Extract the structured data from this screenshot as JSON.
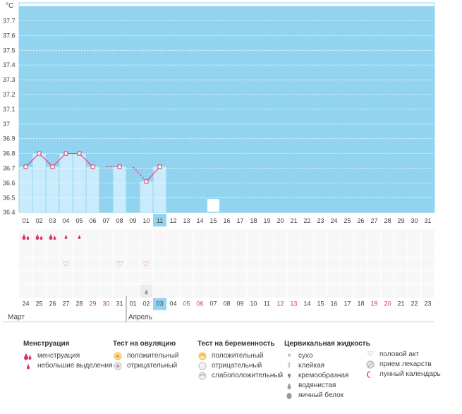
{
  "chart_data": {
    "type": "line",
    "title": "",
    "ylabel": "°C",
    "xlabel": "",
    "ylim": [
      36.4,
      37.8
    ],
    "y_ticks": [
      "37.7",
      "37.6",
      "37.5",
      "37.4",
      "37.3",
      "37.2",
      "37.1",
      "37",
      "36.9",
      "36.8",
      "36.7",
      "36.6",
      "36.5",
      "36.4"
    ],
    "days": [
      "01",
      "02",
      "03",
      "04",
      "05",
      "06",
      "07",
      "08",
      "09",
      "10",
      "11",
      "12",
      "13",
      "14",
      "15",
      "16",
      "17",
      "18",
      "19",
      "20",
      "21",
      "22",
      "23",
      "24",
      "25",
      "26",
      "27",
      "28",
      "29",
      "30",
      "31"
    ],
    "current_day": "11",
    "series": [
      {
        "name": "temperature",
        "values": [
          36.71,
          36.8,
          36.71,
          36.8,
          36.8,
          36.71,
          null,
          36.71,
          null,
          36.61,
          36.71,
          null,
          null,
          null,
          null,
          null,
          null,
          null,
          null,
          null,
          null,
          null,
          null,
          null,
          null,
          null,
          null,
          null,
          null,
          null,
          null
        ],
        "bar_days": [
          "01",
          "02",
          "03",
          "04",
          "05",
          "06",
          "08",
          "10",
          "11"
        ]
      }
    ],
    "dashed_segments": [
      [
        "07",
        "08"
      ],
      [
        "09",
        "10"
      ]
    ],
    "moon_day": "15",
    "menstruation_days": [
      "01",
      "02",
      "03"
    ],
    "spotting_days": [
      "04",
      "05"
    ],
    "intercourse_days": [
      "04",
      "08",
      "10"
    ],
    "fluid_watery_days": [
      "10"
    ],
    "calendar_dates": [
      {
        "label": "24",
        "red": false
      },
      {
        "label": "25",
        "red": false
      },
      {
        "label": "26",
        "red": false
      },
      {
        "label": "27",
        "red": false
      },
      {
        "label": "28",
        "red": false
      },
      {
        "label": "29",
        "red": true
      },
      {
        "label": "30",
        "red": true
      },
      {
        "label": "31",
        "red": false
      },
      {
        "label": "01",
        "red": false
      },
      {
        "label": "02",
        "red": false
      },
      {
        "label": "03",
        "red": false,
        "highlight": true
      },
      {
        "label": "04",
        "red": false
      },
      {
        "label": "05",
        "red": true
      },
      {
        "label": "06",
        "red": true
      },
      {
        "label": "07",
        "red": false
      },
      {
        "label": "08",
        "red": false
      },
      {
        "label": "09",
        "red": false
      },
      {
        "label": "10",
        "red": false
      },
      {
        "label": "11",
        "red": false
      },
      {
        "label": "12",
        "red": true
      },
      {
        "label": "13",
        "red": true
      },
      {
        "label": "14",
        "red": false
      },
      {
        "label": "15",
        "red": false
      },
      {
        "label": "16",
        "red": false
      },
      {
        "label": "17",
        "red": false
      },
      {
        "label": "18",
        "red": false
      },
      {
        "label": "19",
        "red": true
      },
      {
        "label": "20",
        "red": true
      },
      {
        "label": "21",
        "red": false
      },
      {
        "label": "22",
        "red": false
      },
      {
        "label": "23",
        "red": false
      }
    ],
    "months": {
      "first": "Март",
      "second": "Апрель",
      "second_starts_at": "01"
    }
  },
  "legend": {
    "menstruation": {
      "title": "Менструация",
      "items": [
        "менструация",
        "небольшие выделения"
      ]
    },
    "ovulation_test": {
      "title": "Тест на овуляцию",
      "items": [
        "положительный",
        "отрицательный"
      ]
    },
    "pregnancy_test": {
      "title": "Тест на беременность",
      "items": [
        "положительный",
        "отрицательный",
        "слабоположительный"
      ]
    },
    "cervical_fluid": {
      "title": "Цервикальная жидкость",
      "items": [
        "сухо",
        "клейкая",
        "кремообразная",
        "водянистая",
        "яичный белок"
      ]
    },
    "other": {
      "items": [
        "половой акт",
        "прием лекарств",
        "лунный календарь"
      ]
    }
  },
  "colors": {
    "background_band": "#92d4f0",
    "bar": "#c9ebfb",
    "line": "#d9356b",
    "accent_red": "#d9356b",
    "grid_cell": "#f7f7f7"
  }
}
